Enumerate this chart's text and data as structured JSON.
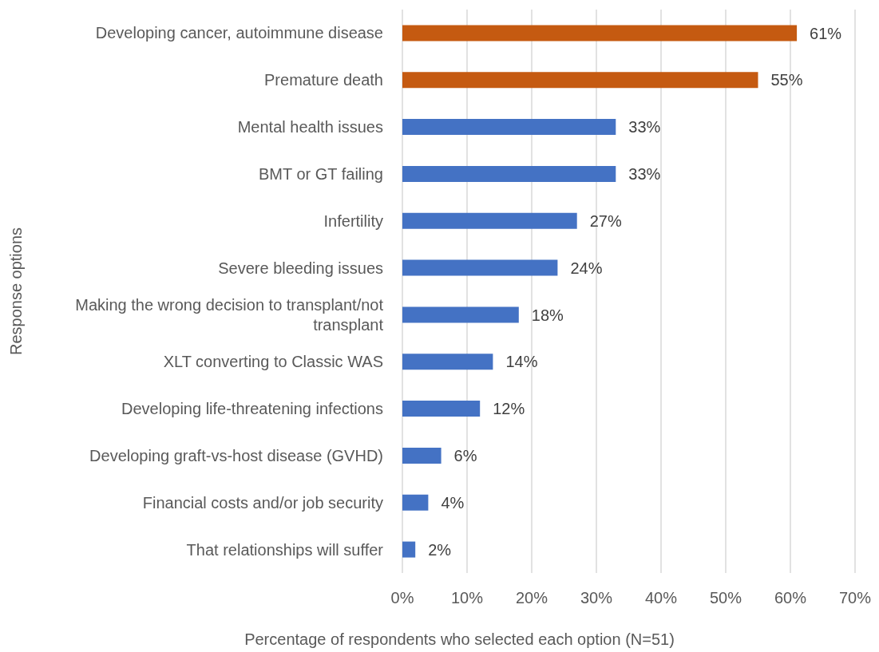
{
  "chart_data": {
    "type": "bar",
    "orientation": "horizontal",
    "categories": [
      "Developing cancer, autoimmune disease",
      "Premature death",
      "Mental health issues",
      "BMT or GT failing",
      "Infertility",
      "Severe bleeding issues",
      "Making the wrong decision to transplant/not transplant",
      "XLT converting to Classic WAS",
      "Developing life-threatening infections",
      "Developing graft-vs-host disease (GVHD)",
      "Financial costs and/or job security",
      "That relationships will suffer"
    ],
    "values": [
      61,
      55,
      33,
      33,
      27,
      24,
      18,
      14,
      12,
      6,
      4,
      2
    ],
    "colors": [
      "#c55a11",
      "#c55a11",
      "#4472c4",
      "#4472c4",
      "#4472c4",
      "#4472c4",
      "#4472c4",
      "#4472c4",
      "#4472c4",
      "#4472c4",
      "#4472c4",
      "#4472c4"
    ],
    "value_labels": [
      "61%",
      "55%",
      "33%",
      "33%",
      "27%",
      "24%",
      "18%",
      "14%",
      "12%",
      "6%",
      "4%",
      "2%"
    ],
    "xlabel": "Percentage of respondents who selected each option (N=51)",
    "ylabel": "Response options",
    "xlim": [
      0,
      70
    ],
    "xticks": [
      {
        "value": 0,
        "label": "0%"
      },
      {
        "value": 10,
        "label": "10%"
      },
      {
        "value": 20,
        "label": "20%"
      },
      {
        "value": 30,
        "label": "30%"
      },
      {
        "value": 40,
        "label": "40%"
      },
      {
        "value": 50,
        "label": "50%"
      },
      {
        "value": 60,
        "label": "60%"
      },
      {
        "value": 70,
        "label": "70%"
      }
    ],
    "grid": "x"
  }
}
